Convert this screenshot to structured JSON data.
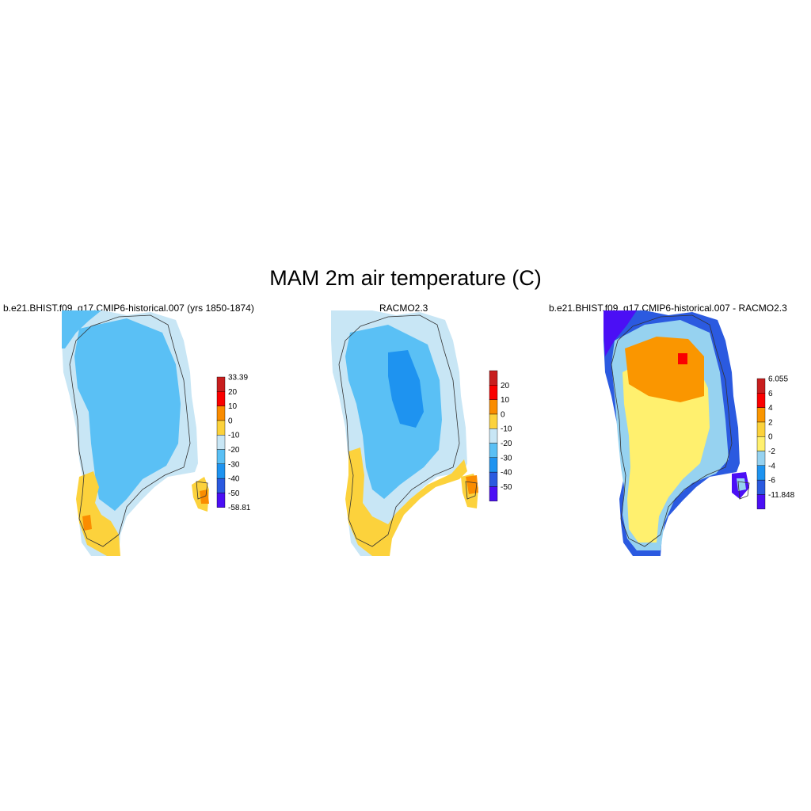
{
  "title": "MAM 2m air temperature (C)",
  "panels": [
    {
      "id": "model",
      "title": "b.e21.BHIST.f09_g17.CMIP6-historical.007 (yrs 1850-1874)",
      "colorbar": {
        "colors": [
          "#4b0ff5",
          "#2b5ae0",
          "#1e93f0",
          "#5ac0f5",
          "#c8e6f5",
          "#fcd23c",
          "#fa8c00",
          "#fa0000",
          "#c81e1e"
        ],
        "labels": [
          "-58.81",
          "-50",
          "-40",
          "-30",
          "-20",
          "-10",
          "0",
          "10",
          "20",
          "33.39"
        ]
      }
    },
    {
      "id": "obs",
      "title": "RACMO2.3",
      "colorbar": {
        "colors": [
          "#4b0ff5",
          "#2b5ae0",
          "#1e93f0",
          "#5ac0f5",
          "#c8e6f5",
          "#fcd23c",
          "#fa8c00",
          "#fa0000",
          "#c81e1e"
        ],
        "labels": [
          "-50",
          "-40",
          "-30",
          "-20",
          "-10",
          "0",
          "10",
          "20"
        ]
      }
    },
    {
      "id": "diff",
      "title": "b.e21.BHIST.f09_g17.CMIP6-historical.007 - RACMO2.3",
      "colorbar": {
        "colors": [
          "#4b0ff5",
          "#2b5ae0",
          "#1e93f0",
          "#96d2f0",
          "#fff06e",
          "#fcd23c",
          "#fa9600",
          "#fa0000",
          "#c81e1e"
        ],
        "labels": [
          "-11.848",
          "-6",
          "-4",
          "-2",
          "0",
          "2",
          "4",
          "6",
          "6.055"
        ]
      }
    }
  ]
}
